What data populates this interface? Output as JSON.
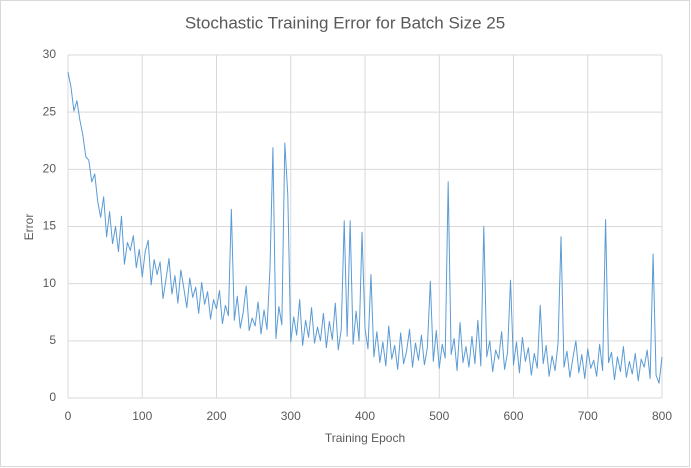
{
  "chart_data": {
    "type": "line",
    "title": "Stochastic Training Error for Batch Size 25",
    "x_label": "Training Epoch",
    "y_label": "Error",
    "xlim": [
      0,
      800
    ],
    "xticks": [
      0,
      100,
      200,
      300,
      400,
      500,
      600,
      700,
      800
    ],
    "ylim": [
      0,
      30
    ],
    "yticks": [
      0,
      5,
      10,
      15,
      20,
      25,
      30
    ],
    "grid": true,
    "series": [
      {
        "color": "#5b9bd5",
        "x": [
          0,
          4,
          8,
          12,
          16,
          20,
          24,
          28,
          32,
          36,
          40,
          44,
          48,
          52,
          56,
          60,
          64,
          68,
          72,
          76,
          80,
          84,
          88,
          92,
          96,
          100,
          104,
          108,
          112,
          116,
          120,
          124,
          128,
          132,
          136,
          140,
          144,
          148,
          152,
          156,
          160,
          164,
          168,
          172,
          176,
          180,
          184,
          188,
          192,
          196,
          200,
          204,
          208,
          212,
          216,
          220,
          224,
          228,
          232,
          236,
          240,
          244,
          248,
          252,
          256,
          260,
          264,
          268,
          272,
          276,
          280,
          284,
          288,
          292,
          296,
          300,
          304,
          308,
          312,
          316,
          320,
          324,
          328,
          332,
          336,
          340,
          344,
          348,
          352,
          356,
          360,
          364,
          368,
          372,
          376,
          380,
          384,
          388,
          392,
          396,
          400,
          404,
          408,
          412,
          416,
          420,
          424,
          428,
          432,
          436,
          440,
          444,
          448,
          452,
          456,
          460,
          464,
          468,
          472,
          476,
          480,
          484,
          488,
          492,
          496,
          500,
          504,
          508,
          512,
          516,
          520,
          524,
          528,
          532,
          536,
          540,
          544,
          548,
          552,
          556,
          560,
          564,
          568,
          572,
          576,
          580,
          584,
          588,
          592,
          596,
          600,
          604,
          608,
          612,
          616,
          620,
          624,
          628,
          632,
          636,
          640,
          644,
          648,
          652,
          656,
          660,
          664,
          668,
          672,
          676,
          680,
          684,
          688,
          692,
          696,
          700,
          704,
          708,
          712,
          716,
          720,
          724,
          728,
          732,
          736,
          740,
          744,
          748,
          752,
          756,
          760,
          764,
          768,
          772,
          776,
          780,
          784,
          788,
          792,
          796,
          800
        ],
        "values": [
          28.5,
          27.2,
          25.1,
          26.0,
          24.3,
          23.0,
          21.1,
          20.8,
          18.9,
          19.6,
          17.2,
          15.8,
          17.6,
          14.1,
          16.3,
          13.5,
          15.0,
          12.8,
          15.9,
          11.7,
          13.6,
          12.9,
          14.2,
          11.4,
          13.0,
          10.6,
          12.8,
          13.8,
          9.9,
          12.1,
          10.8,
          11.9,
          8.7,
          10.4,
          12.2,
          9.1,
          10.7,
          8.3,
          11.2,
          9.6,
          7.9,
          10.5,
          8.8,
          9.7,
          7.4,
          10.1,
          8.2,
          9.3,
          6.9,
          8.6,
          7.8,
          9.4,
          6.5,
          8.1,
          7.2,
          16.5,
          6.8,
          8.9,
          6.1,
          7.5,
          9.8,
          5.9,
          7.0,
          6.3,
          8.4,
          5.6,
          7.7,
          6.0,
          11.3,
          21.9,
          5.2,
          8.0,
          6.4,
          22.3,
          17.8,
          4.9,
          7.1,
          5.5,
          8.6,
          4.6,
          6.8,
          5.3,
          7.9,
          4.8,
          6.2,
          5.0,
          7.4,
          4.4,
          6.7,
          5.1,
          8.3,
          4.2,
          6.0,
          15.5,
          5.4,
          15.5,
          4.7,
          7.6,
          5.0,
          14.5,
          6.1,
          4.3,
          10.8,
          3.6,
          5.8,
          3.1,
          4.9,
          2.8,
          6.3,
          3.4,
          4.6,
          2.5,
          5.7,
          3.0,
          4.1,
          6.0,
          2.7,
          4.8,
          3.3,
          5.5,
          2.9,
          4.4,
          10.2,
          3.2,
          5.9,
          2.6,
          4.7,
          3.5,
          18.9,
          3.8,
          5.2,
          2.4,
          6.6,
          3.1,
          4.5,
          2.7,
          5.4,
          3.0,
          6.8,
          2.8,
          15.0,
          3.6,
          5.0,
          2.3,
          4.2,
          3.4,
          5.8,
          2.5,
          4.0,
          10.3,
          2.9,
          4.9,
          2.2,
          5.3,
          3.2,
          4.4,
          2.0,
          3.9,
          2.6,
          8.1,
          3.0,
          4.6,
          1.9,
          3.7,
          2.4,
          4.8,
          14.1,
          2.7,
          4.1,
          1.8,
          3.5,
          5.0,
          2.2,
          3.8,
          1.7,
          4.3,
          2.6,
          3.3,
          1.9,
          4.7,
          2.4,
          15.6,
          3.1,
          4.0,
          1.6,
          3.6,
          2.3,
          4.5,
          1.8,
          3.2,
          2.1,
          3.9,
          1.5,
          3.4,
          2.7,
          4.2,
          1.7,
          12.6,
          2.0,
          1.3,
          3.6
        ]
      }
    ]
  }
}
